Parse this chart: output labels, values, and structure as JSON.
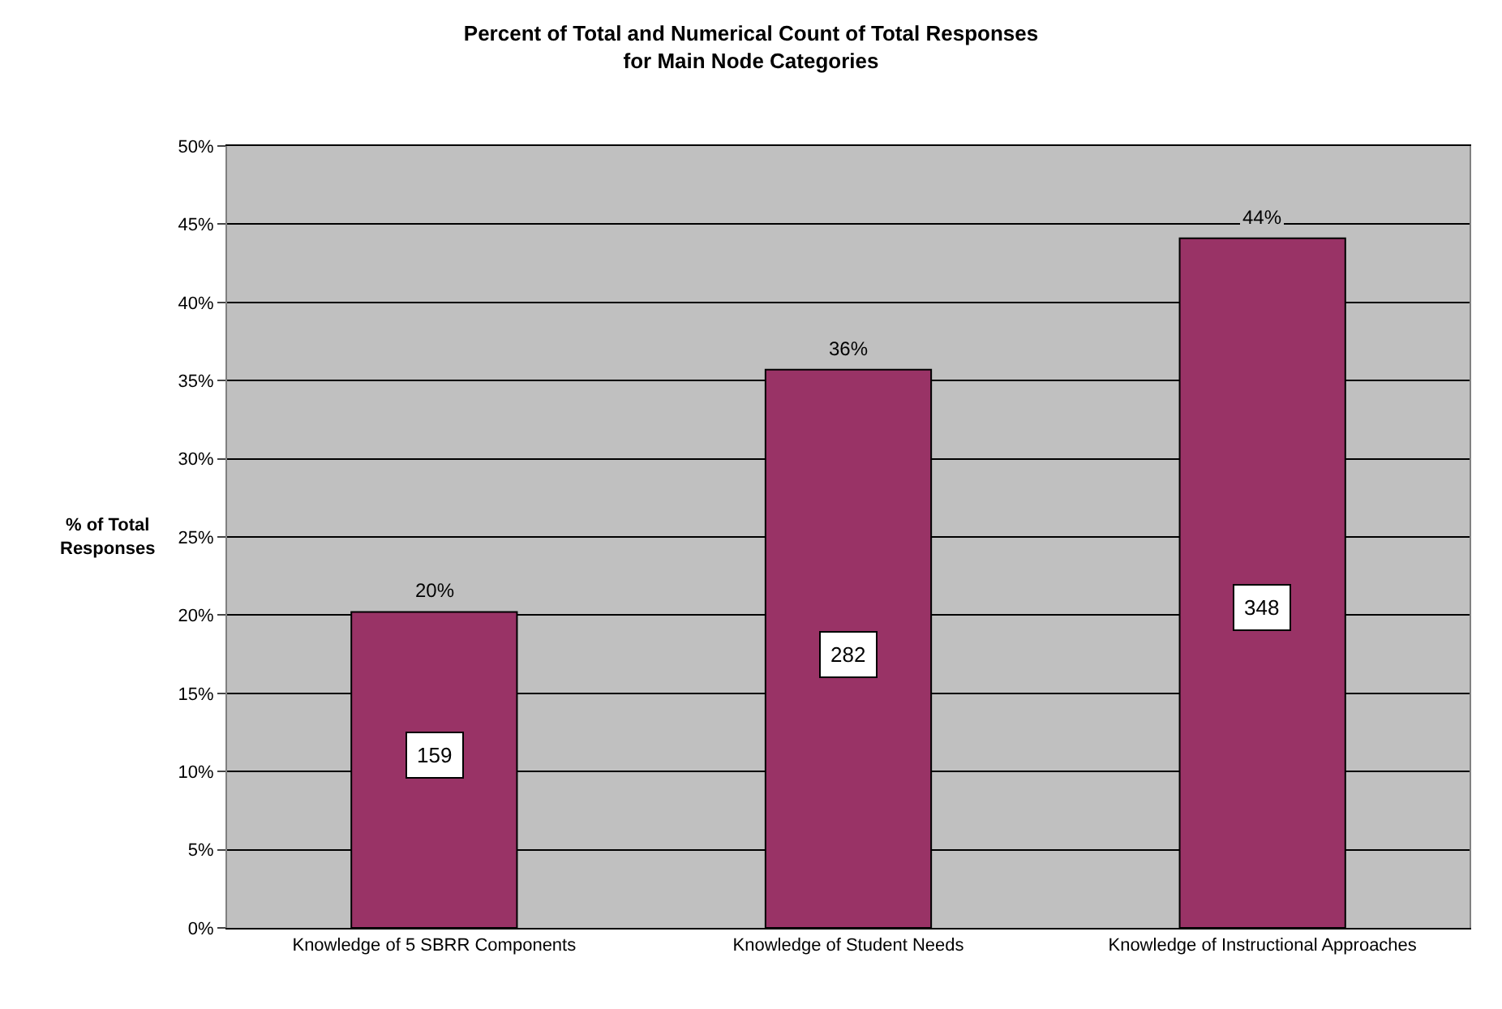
{
  "chart_data": {
    "type": "bar",
    "title": "Percent of Total and Numerical Count of Total Responses\nfor Main Node Categories",
    "ylabel": "% of Total\nResponses",
    "categories": [
      "Knowledge of 5 SBRR Components",
      "Knowledge of Student Needs",
      "Knowledge of Instructional Approaches"
    ],
    "values": [
      20.2,
      35.7,
      44.1
    ],
    "color": "#993366",
    "value_labels": [
      "20%",
      "36%",
      "44%"
    ],
    "annotations": [
      {
        "text": "159",
        "x": "Knowledge of 5 SBRR Components",
        "y": 11
      },
      {
        "text": "282",
        "x": "Knowledge of Student Needs",
        "y": 17.5
      },
      {
        "text": "348",
        "x": "Knowledge of Instructional Approaches",
        "y": 20.5
      }
    ],
    "ylim": [
      0,
      50
    ],
    "yticks": [
      {
        "value": 0,
        "label": "0%"
      },
      {
        "value": 5,
        "label": "5%"
      },
      {
        "value": 10,
        "label": "10%"
      },
      {
        "value": 15,
        "label": "15%"
      },
      {
        "value": 20,
        "label": "20%"
      },
      {
        "value": 25,
        "label": "25%"
      },
      {
        "value": 30,
        "label": "30%"
      },
      {
        "value": 35,
        "label": "35%"
      },
      {
        "value": 40,
        "label": "40%"
      },
      {
        "value": 45,
        "label": "45%"
      },
      {
        "value": 50,
        "label": "50%"
      }
    ],
    "grid": "y",
    "legend": false
  }
}
